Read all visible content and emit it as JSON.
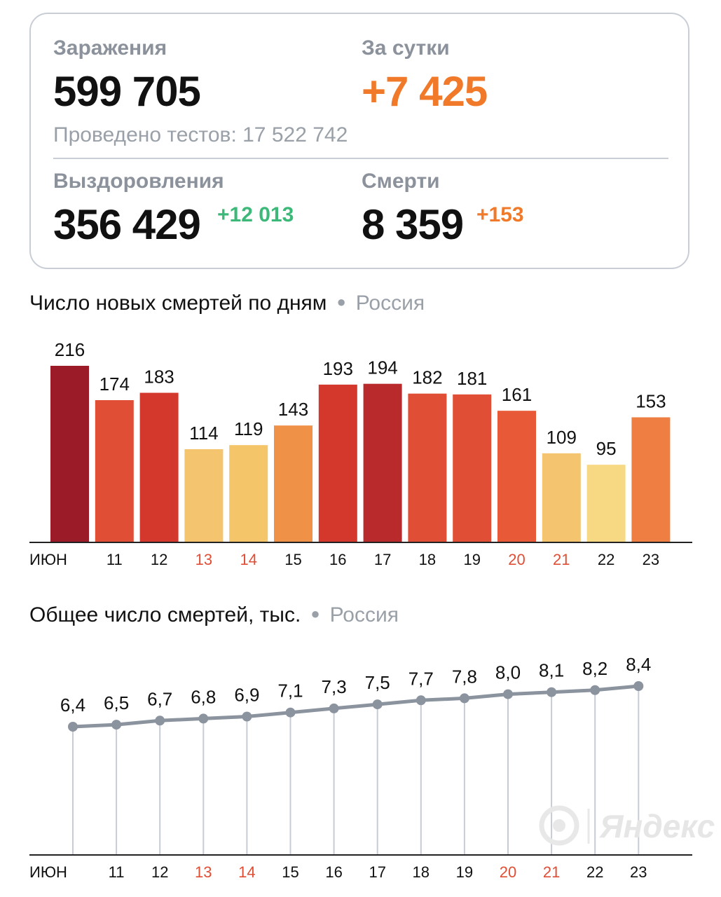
{
  "summary": {
    "infections_label": "Заражения",
    "infections_value": "599 705",
    "daily_label": "За сутки",
    "daily_value": "+7 425",
    "tests_text": "Проведено тестов: 17 522 742",
    "recoveries_label": "Выздоровления",
    "recoveries_value": "356 429",
    "recoveries_delta": "+12 013",
    "deaths_label": "Смерти",
    "deaths_value": "8 359",
    "deaths_delta": "+153"
  },
  "chart_data": [
    {
      "type": "bar",
      "title": "Число новых смертей по дням",
      "region": "Россия",
      "categories": [
        "ИЮН",
        "11",
        "12",
        "13",
        "14",
        "15",
        "16",
        "17",
        "18",
        "19",
        "20",
        "21",
        "22",
        "23"
      ],
      "values": [
        216,
        174,
        183,
        114,
        119,
        143,
        193,
        194,
        182,
        181,
        161,
        109,
        95,
        153
      ],
      "colors": [
        "#9b1c28",
        "#e04e35",
        "#d4382c",
        "#f4c56e",
        "#f5c56a",
        "#ef9147",
        "#d4382c",
        "#b82a2b",
        "#e04e35",
        "#e04e35",
        "#e85a37",
        "#f4c56e",
        "#f7d883",
        "#ee7e42"
      ],
      "highlighted_categories": [
        "13",
        "14",
        "20",
        "21"
      ],
      "highlight_color": "#e04e35",
      "ylim": [
        0,
        216
      ],
      "grid": false
    },
    {
      "type": "line",
      "title": "Общее число смертей, тыс.",
      "region": "Россия",
      "categories": [
        "ИЮН",
        "11",
        "12",
        "13",
        "14",
        "15",
        "16",
        "17",
        "18",
        "19",
        "20",
        "21",
        "22",
        "23"
      ],
      "values": [
        6.4,
        6.5,
        6.7,
        6.8,
        6.9,
        7.1,
        7.3,
        7.5,
        7.7,
        7.8,
        8.0,
        8.1,
        8.2,
        8.4
      ],
      "labels": [
        "6,4",
        "6,5",
        "6,7",
        "6,8",
        "6,9",
        "7,1",
        "7,3",
        "7,5",
        "7,7",
        "7,8",
        "8,0",
        "8,1",
        "8,2",
        "8,4"
      ],
      "highlighted_categories": [
        "13",
        "14",
        "20",
        "21"
      ],
      "line_color": "#8b939e",
      "highlight_color": "#e04e35",
      "grid": false
    }
  ],
  "watermark": {
    "text": "Яндекс",
    "icon": "yandex-logo-icon"
  }
}
